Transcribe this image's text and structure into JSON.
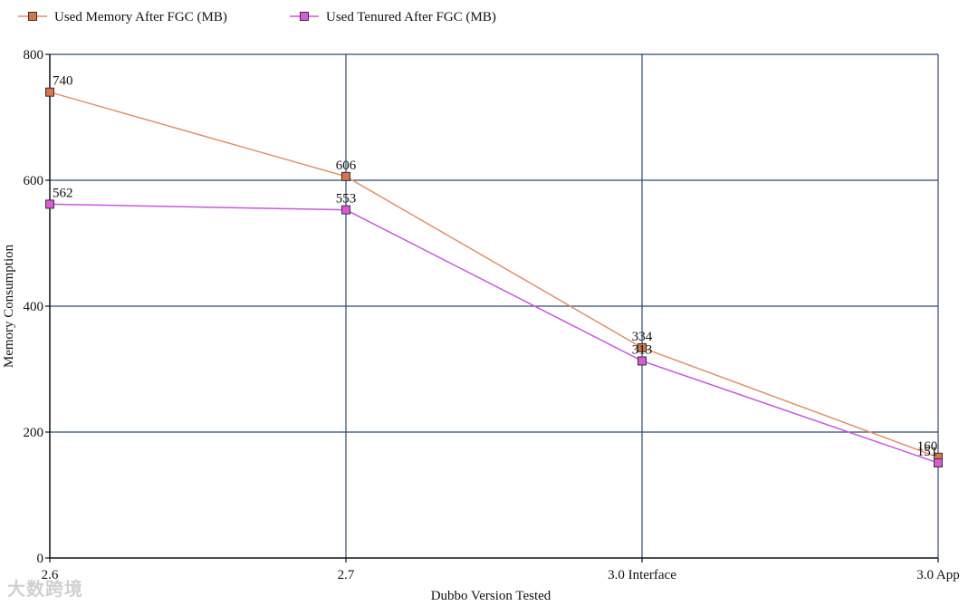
{
  "chart_data": {
    "type": "line",
    "title": "",
    "xlabel": "Dubbo Version Tested",
    "ylabel": "Memory Consumption",
    "categories": [
      "2.6",
      "2.7",
      "3.0 Interface",
      "3.0 App"
    ],
    "ylim": [
      0,
      800
    ],
    "yticks": [
      0,
      200,
      400,
      600,
      800
    ],
    "grid": true,
    "legend_position": "top-left",
    "series": [
      {
        "name": "Used Memory After FGC (MB)",
        "values": [
          740,
          606,
          334,
          160
        ],
        "color": "#d9734b",
        "line_color": "#e0916c",
        "labels": [
          "740",
          "606",
          "334",
          "160"
        ]
      },
      {
        "name": "Used Tenured After FGC (MB)",
        "values": [
          562,
          553,
          313,
          151
        ],
        "color": "#d95ad9",
        "line_color": "#cc55e0",
        "labels": [
          "562",
          "553",
          "313",
          "151"
        ]
      }
    ]
  },
  "colors": {
    "grid": "#2f4a6e",
    "axis": "#111111",
    "watermark": "#9a9a9a"
  },
  "watermark_text": "大数跨境"
}
